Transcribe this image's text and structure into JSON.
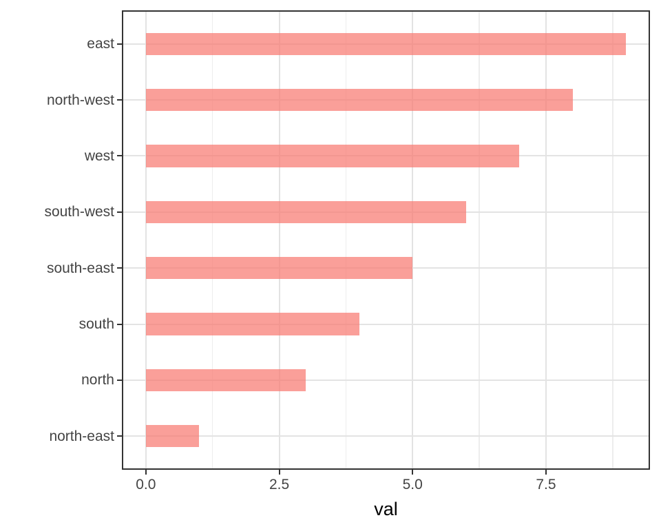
{
  "chart_data": {
    "type": "bar",
    "orientation": "horizontal",
    "categories": [
      "east",
      "north-west",
      "west",
      "south-west",
      "south-east",
      "south",
      "north",
      "north-east"
    ],
    "values": [
      9,
      8,
      7,
      6,
      5,
      4,
      3,
      1
    ],
    "title": "",
    "xlabel": "val",
    "ylabel": "",
    "xlim": [
      -0.45,
      9.45
    ],
    "x_major_ticks": [
      0,
      2.5,
      5,
      7.5
    ],
    "x_tick_labels": [
      "0.0",
      "2.5",
      "5.0",
      "7.5"
    ],
    "x_minor_ticks": [
      1.25,
      3.75,
      6.25,
      8.75
    ],
    "bar_width_fraction": 0.4,
    "grid": "major-and-minor-x, major-y-at-category-centers",
    "legend": false,
    "theme": "ggplot2 theme_bw"
  },
  "style": {
    "bar_fill": "#F8766D",
    "bar_alpha": 0.7,
    "grid_major_color": "#e3e3e3",
    "grid_minor_color": "#ededed",
    "panel_border_color": "#333333",
    "tick_color": "#333333",
    "tick_label_color": "#444444",
    "axis_title_color": "#000000",
    "background": "#ffffff"
  }
}
